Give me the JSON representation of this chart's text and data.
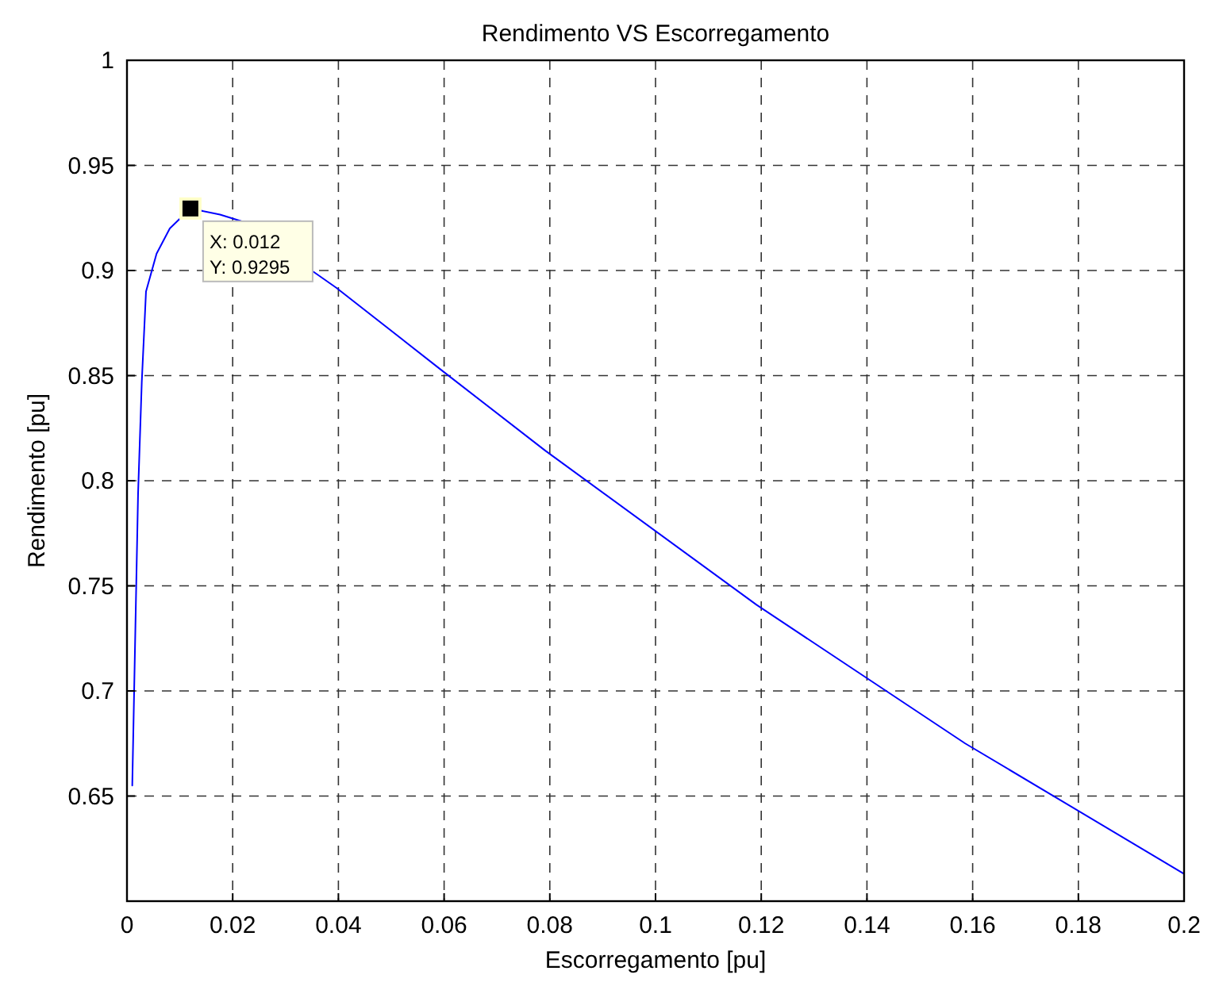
{
  "chart_data": {
    "type": "line",
    "title": "Rendimento VS Escorregamento",
    "xlabel": "Escorregamento [pu]",
    "ylabel": "Rendimento [pu]",
    "xlim": [
      0,
      0.2
    ],
    "xticks": [
      0,
      0.02,
      0.04,
      0.06,
      0.08,
      0.1,
      0.12,
      0.14,
      0.16,
      0.18,
      0.2
    ],
    "ylim": [
      0.6,
      1
    ],
    "yticks": [
      {
        "value": 0.6,
        "label": null
      },
      0.65,
      0.7,
      0.75,
      0.8,
      0.85,
      0.9,
      0.95,
      1
    ],
    "grid": true,
    "line_style": "solid",
    "series": [
      {
        "color": "#0000ff",
        "x": [
          0.001,
          0.0016,
          0.0021,
          0.0028,
          0.0036,
          0.0056,
          0.0081,
          0.012,
          0.0176,
          0.0216,
          0.0396,
          0.0596,
          0.0791,
          0.1191,
          0.1586,
          0.2
        ],
        "values": [
          0.655,
          0.731,
          0.794,
          0.847,
          0.89,
          0.908,
          0.92,
          0.9295,
          0.9266,
          0.9235,
          0.8918,
          0.8524,
          0.8144,
          0.741,
          0.675,
          0.613
        ]
      },
      {
        "type": "scatter",
        "color": "#000000",
        "marker": "square",
        "x": [
          0.012
        ],
        "values": [
          0.9295
        ]
      }
    ],
    "annotations": [
      {
        "text": "X: 0.012\nY: 0.9295",
        "x": 0.012,
        "y": 0.9295
      }
    ]
  }
}
